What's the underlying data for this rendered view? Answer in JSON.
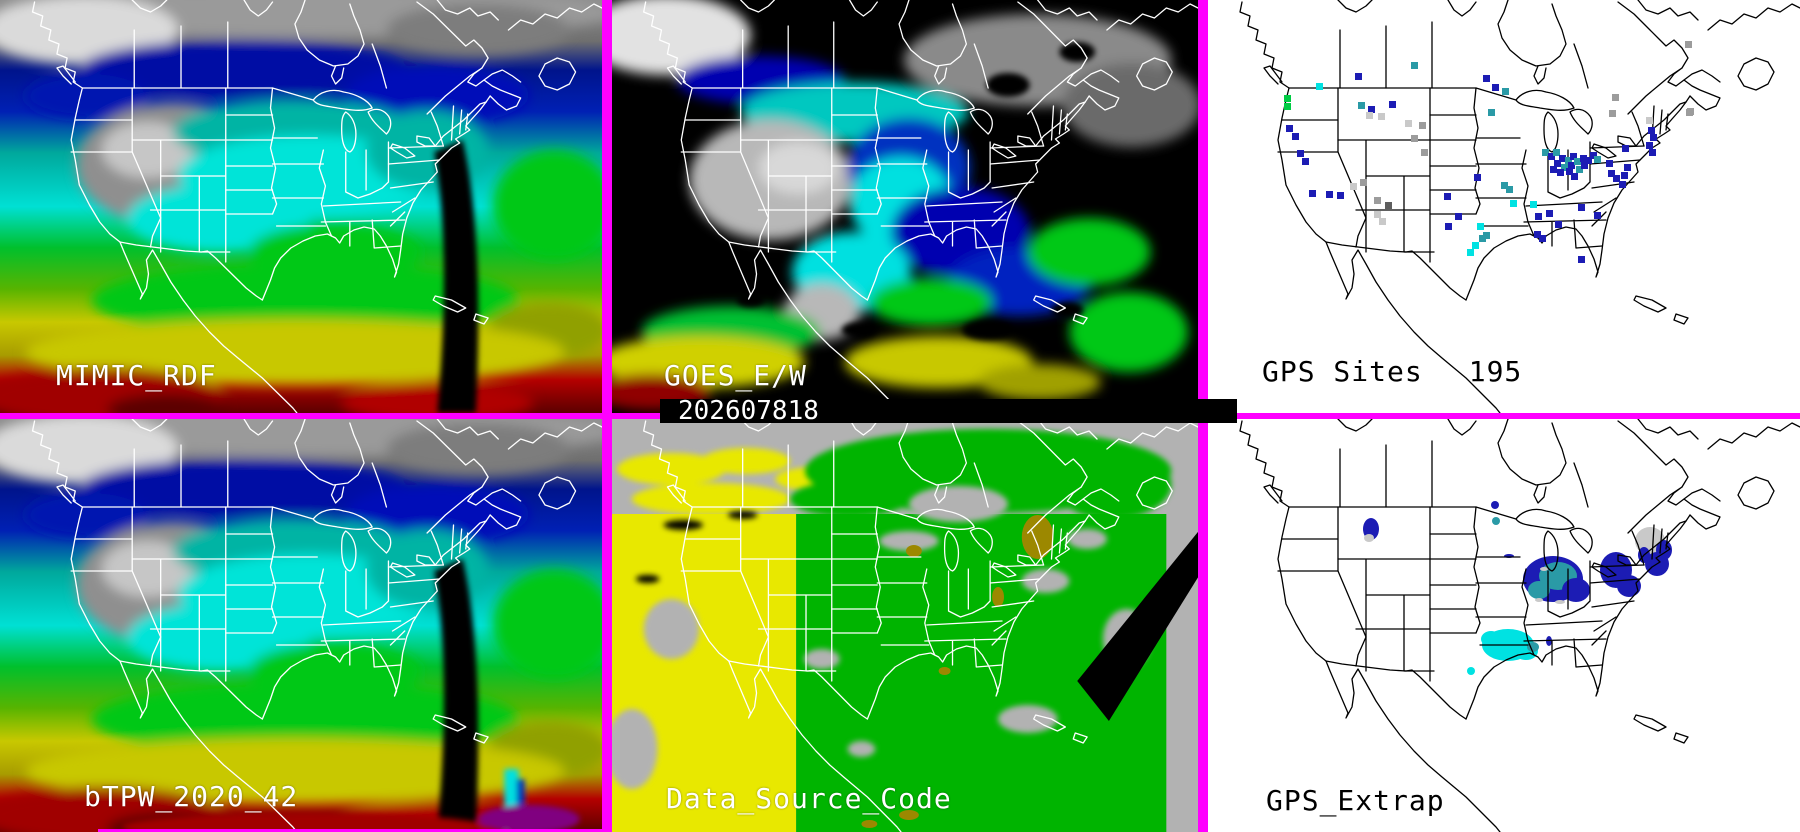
{
  "colors": {
    "divider": "#ff00ff",
    "timestamp_bg": "#000000",
    "timestamp_fg": "#ffffff",
    "site_colors": {
      "navy": "#1c1cb4",
      "teal": "#2a9aa6",
      "cyan": "#00e2e2",
      "green": "#00cc44",
      "gray": "#9c9c9c",
      "lightgray": "#c9c9c9",
      "darkgray": "#5e5e5e",
      "black": "#000000"
    },
    "tpw_scale": [
      "#000000",
      "#8a8a8a",
      "#00148c",
      "#0020b4",
      "#00a89c",
      "#00e0d4",
      "#00c02c",
      "#c8c800",
      "#a89c00",
      "#b40000",
      "#5c0000"
    ],
    "source_code_scale": {
      "goes_west": "#e8e800",
      "goes_east": "#00b400",
      "none": "#b2b2b2",
      "gap": "#000000",
      "gps": "#9c8800"
    }
  },
  "panels": {
    "mimic": {
      "label": "MIMIC_RDF"
    },
    "goes": {
      "label": "GOES_E/W",
      "timestamp": "202607818"
    },
    "gps_sites": {
      "label": "GPS Sites",
      "count": "195",
      "sites": [
        [
          206,
          65,
          "teal"
        ],
        [
          150,
          76,
          "navy"
        ],
        [
          278,
          78,
          "navy"
        ],
        [
          480,
          44,
          "gray"
        ],
        [
          111,
          86,
          "cyan"
        ],
        [
          287,
          87,
          "navy"
        ],
        [
          297,
          91,
          "teal"
        ],
        [
          79,
          98,
          "green"
        ],
        [
          79,
          106,
          "green"
        ],
        [
          153,
          105,
          "teal"
        ],
        [
          163,
          109,
          "navy"
        ],
        [
          184,
          104,
          "navy"
        ],
        [
          161,
          115,
          "lightgray"
        ],
        [
          173,
          116,
          "lightgray"
        ],
        [
          283,
          112,
          "teal"
        ],
        [
          407,
          97,
          "gray"
        ],
        [
          404,
          113,
          "gray"
        ],
        [
          481,
          112,
          "gray"
        ],
        [
          200,
          123,
          "lightgray"
        ],
        [
          214,
          125,
          "gray"
        ],
        [
          206,
          138,
          "gray"
        ],
        [
          216,
          152,
          "gray"
        ],
        [
          81,
          128,
          "navy"
        ],
        [
          87,
          136,
          "navy"
        ],
        [
          92,
          153,
          "navy"
        ],
        [
          97,
          161,
          "navy"
        ],
        [
          104,
          193,
          "navy"
        ],
        [
          121,
          194,
          "navy"
        ],
        [
          132,
          195,
          "navy"
        ],
        [
          145,
          186,
          "lightgray"
        ],
        [
          155,
          182,
          "gray"
        ],
        [
          169,
          200,
          "gray"
        ],
        [
          180,
          205,
          "darkgray"
        ],
        [
          169,
          214,
          "lightgray"
        ],
        [
          174,
          221,
          "lightgray"
        ],
        [
          239,
          196,
          "navy"
        ],
        [
          269,
          177,
          "navy"
        ],
        [
          250,
          216,
          "navy"
        ],
        [
          240,
          226,
          "navy"
        ],
        [
          272,
          226,
          "cyan"
        ],
        [
          278,
          235,
          "teal"
        ],
        [
          267,
          245,
          "cyan"
        ],
        [
          274,
          238,
          "teal"
        ],
        [
          262,
          252,
          "cyan"
        ],
        [
          296,
          185,
          "teal"
        ],
        [
          301,
          189,
          "teal"
        ],
        [
          305,
          203,
          "cyan"
        ],
        [
          325,
          204,
          "cyan"
        ],
        [
          330,
          216,
          "navy"
        ],
        [
          341,
          213,
          "navy"
        ],
        [
          329,
          234,
          "navy"
        ],
        [
          334,
          238,
          "navy"
        ],
        [
          350,
          224,
          "navy"
        ],
        [
          373,
          207,
          "navy"
        ],
        [
          389,
          215,
          "navy"
        ],
        [
          373,
          259,
          "navy"
        ],
        [
          337,
          152,
          "teal"
        ],
        [
          343,
          156,
          "navy"
        ],
        [
          348,
          152,
          "teal"
        ],
        [
          354,
          158,
          "navy"
        ],
        [
          360,
          160,
          "teal"
        ],
        [
          365,
          156,
          "navy"
        ],
        [
          349,
          163,
          "navy"
        ],
        [
          356,
          167,
          "teal"
        ],
        [
          363,
          165,
          "navy"
        ],
        [
          369,
          161,
          "teal"
        ],
        [
          375,
          158,
          "navy"
        ],
        [
          345,
          169,
          "navy"
        ],
        [
          352,
          172,
          "navy"
        ],
        [
          361,
          171,
          "navy"
        ],
        [
          371,
          169,
          "teal"
        ],
        [
          376,
          165,
          "navy"
        ],
        [
          380,
          160,
          "navy"
        ],
        [
          385,
          155,
          "navy"
        ],
        [
          389,
          159,
          "teal"
        ],
        [
          366,
          176,
          "navy"
        ],
        [
          417,
          148,
          "navy"
        ],
        [
          441,
          120,
          "lightgray"
        ],
        [
          443,
          130,
          "navy"
        ],
        [
          445,
          137,
          "navy"
        ],
        [
          441,
          145,
          "navy"
        ],
        [
          444,
          152,
          "navy"
        ],
        [
          401,
          163,
          "navy"
        ],
        [
          419,
          167,
          "navy"
        ],
        [
          416,
          175,
          "navy"
        ],
        [
          403,
          173,
          "navy"
        ],
        [
          408,
          178,
          "navy"
        ],
        [
          414,
          184,
          "navy"
        ],
        [
          482,
          111,
          "gray"
        ]
      ]
    },
    "btpw": {
      "label": "bTPW_2020_42"
    },
    "source": {
      "label": "Data_Source_Code"
    },
    "extrap": {
      "label": "GPS_Extrap",
      "blobs": [
        [
          163,
          110,
          8,
          11,
          "navy"
        ],
        [
          161,
          119,
          5,
          4,
          "lightgray"
        ],
        [
          287,
          86,
          4,
          4,
          "navy"
        ],
        [
          288,
          102,
          4,
          4,
          "teal"
        ],
        [
          301,
          137,
          5,
          2,
          "navy"
        ],
        [
          345,
          160,
          30,
          23,
          "navy"
        ],
        [
          350,
          157,
          19,
          14,
          "teal"
        ],
        [
          368,
          171,
          14,
          12,
          "navy"
        ],
        [
          331,
          171,
          11,
          9,
          "teal"
        ],
        [
          336,
          150,
          4,
          2,
          "lightgray"
        ],
        [
          331,
          181,
          4,
          2,
          "lightgray"
        ],
        [
          352,
          183,
          5,
          2,
          "lightgray"
        ],
        [
          408,
          151,
          16,
          18,
          "navy"
        ],
        [
          421,
          167,
          12,
          11,
          "navy"
        ],
        [
          442,
          122,
          15,
          14,
          "lightgray"
        ],
        [
          449,
          145,
          12,
          12,
          "navy"
        ],
        [
          456,
          131,
          8,
          10,
          "navy"
        ],
        [
          436,
          136,
          6,
          8,
          "navy"
        ],
        [
          300,
          226,
          26,
          16,
          "cyan"
        ],
        [
          318,
          232,
          12,
          9,
          "cyan"
        ],
        [
          283,
          220,
          10,
          8,
          "cyan"
        ],
        [
          325,
          228,
          6,
          5,
          "teal"
        ],
        [
          341,
          222,
          3,
          5,
          "navy"
        ],
        [
          263,
          252,
          4,
          4,
          "cyan"
        ]
      ]
    }
  }
}
